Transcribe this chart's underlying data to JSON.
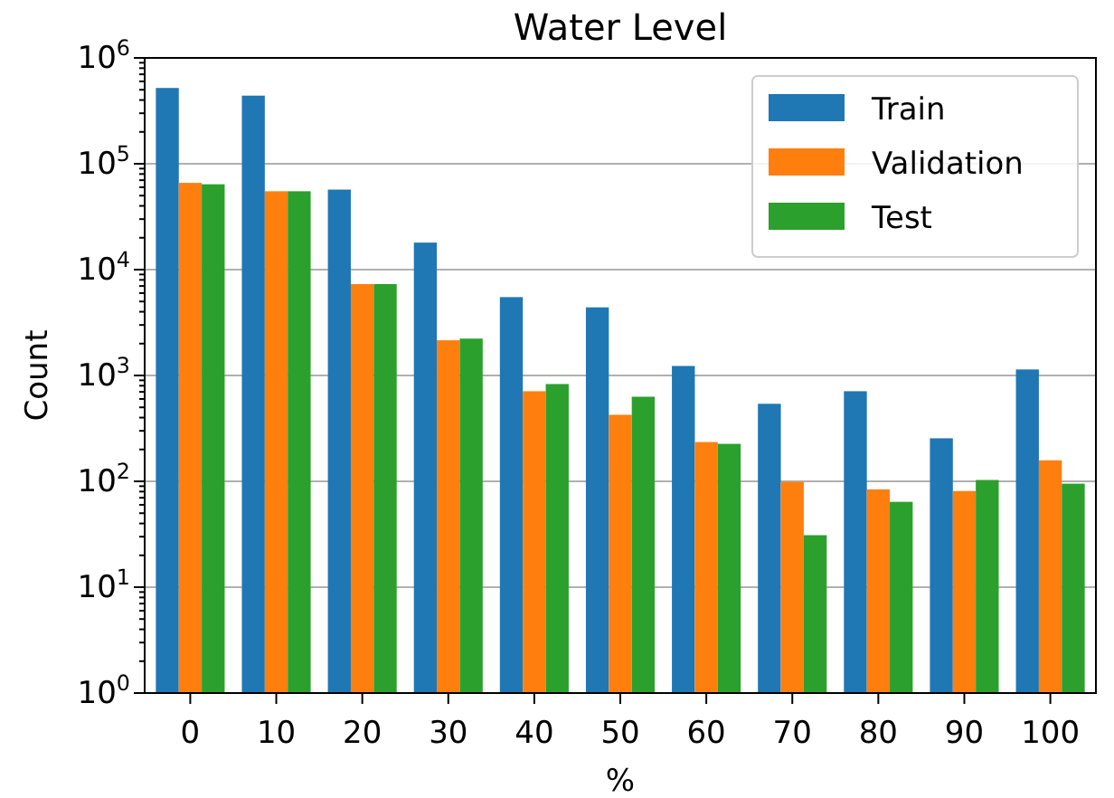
{
  "chart_data": {
    "type": "bar",
    "title": "Water Level",
    "xlabel": "%",
    "ylabel": "Count",
    "categories": [
      "0",
      "10",
      "20",
      "30",
      "40",
      "50",
      "60",
      "70",
      "80",
      "90",
      "100"
    ],
    "series": [
      {
        "name": "Train",
        "color": "#1f77b4",
        "values": [
          520000,
          440000,
          57000,
          18000,
          5500,
          4400,
          1230,
          540,
          710,
          255,
          1140
        ]
      },
      {
        "name": "Validation",
        "color": "#ff7f0e",
        "values": [
          66000,
          55000,
          7300,
          2150,
          710,
          425,
          235,
          99,
          84,
          81,
          158
        ]
      },
      {
        "name": "Test",
        "color": "#2ca02c",
        "values": [
          64000,
          55000,
          7300,
          2230,
          830,
          630,
          226,
          31,
          64,
          103,
          95
        ]
      }
    ],
    "log": true,
    "ylim": [
      1,
      1000000
    ],
    "yticks": [
      {
        "value": 1,
        "label": "10$^{0}$"
      },
      {
        "value": 10,
        "label": "10$^{1}$"
      },
      {
        "value": 100,
        "label": "10$^{2}$"
      },
      {
        "value": 1000,
        "label": "10$^{3}$"
      },
      {
        "value": 10000,
        "label": "10$^{4}$"
      },
      {
        "value": 100000,
        "label": "10$^{5}$"
      },
      {
        "value": 1000000,
        "label": "10$^{6}$"
      }
    ],
    "grid": "y",
    "legend": "top right"
  }
}
